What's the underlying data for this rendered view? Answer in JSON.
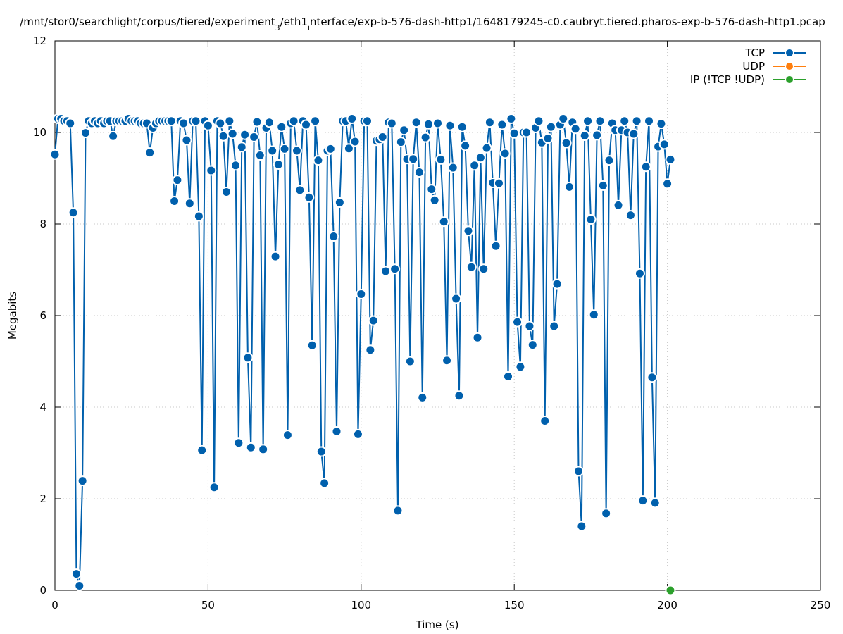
{
  "chart_data": {
    "type": "line",
    "title": "/mnt/stor0/searchlight/corpus/tiered/experiment_3/eth1_interface/exp-b-576-dash-http1/1648179245-c0.caubryt.tiered.pharos-exp-b-576-dash-http1.pcap",
    "title_parts": {
      "pre": "/mnt/stor0/searchlight/corpus/tiered/experiment",
      "sub1": "3",
      "mid": "/eth1",
      "sub2": "i",
      "post": "nterface/exp-b-576-dash-http1/1648179245-c0.caubryt.tiered.pharos-exp-b-576-dash-http1.pcap"
    },
    "xlabel": "Time (s)",
    "ylabel": "Megabits",
    "xlim": [
      0,
      250
    ],
    "ylim": [
      0,
      12
    ],
    "xticks": [
      0,
      50,
      100,
      150,
      200,
      250
    ],
    "yticks": [
      0,
      2,
      4,
      6,
      8,
      10,
      12
    ],
    "grid": true,
    "legend_position": "top-right",
    "series": [
      {
        "name": "TCP",
        "color": "#0060ad",
        "points": [
          [
            0,
            9.52
          ],
          [
            1,
            10.3
          ],
          [
            2,
            10.3
          ],
          [
            3,
            10.25
          ],
          [
            4,
            10.25
          ],
          [
            5,
            10.2
          ],
          [
            6,
            8.25
          ],
          [
            7,
            0.36
          ],
          [
            8,
            0.1
          ],
          [
            9,
            2.39
          ],
          [
            10,
            9.99
          ],
          [
            11,
            10.25
          ],
          [
            12,
            10.2
          ],
          [
            13,
            10.25
          ],
          [
            14,
            10.2
          ],
          [
            15,
            10.25
          ],
          [
            16,
            10.2
          ],
          [
            17,
            10.25
          ],
          [
            18,
            10.25
          ],
          [
            19,
            9.92
          ],
          [
            20,
            10.25
          ],
          [
            21,
            10.25
          ],
          [
            22,
            10.25
          ],
          [
            23,
            10.25
          ],
          [
            24,
            10.3
          ],
          [
            25,
            10.25
          ],
          [
            26,
            10.25
          ],
          [
            27,
            10.25
          ],
          [
            28,
            10.2
          ],
          [
            29,
            10.2
          ],
          [
            30,
            10.2
          ],
          [
            31,
            9.56
          ],
          [
            32,
            10.1
          ],
          [
            33,
            10.2
          ],
          [
            34,
            10.25
          ],
          [
            35,
            10.25
          ],
          [
            36,
            10.25
          ],
          [
            37,
            10.25
          ],
          [
            38,
            10.25
          ],
          [
            39,
            8.5
          ],
          [
            40,
            8.96
          ],
          [
            41,
            10.25
          ],
          [
            42,
            10.2
          ],
          [
            43,
            9.83
          ],
          [
            44,
            8.45
          ],
          [
            45,
            10.25
          ],
          [
            46,
            10.25
          ],
          [
            47,
            8.17
          ],
          [
            48,
            3.06
          ],
          [
            49,
            10.25
          ],
          [
            50,
            10.15
          ],
          [
            51,
            9.17
          ],
          [
            52,
            2.25
          ],
          [
            53,
            10.25
          ],
          [
            54,
            10.2
          ],
          [
            55,
            9.92
          ],
          [
            56,
            8.7
          ],
          [
            57,
            10.25
          ],
          [
            58,
            9.97
          ],
          [
            59,
            9.28
          ],
          [
            60,
            3.22
          ],
          [
            61,
            9.68
          ],
          [
            62,
            9.95
          ],
          [
            63,
            5.08
          ],
          [
            64,
            3.12
          ],
          [
            65,
            9.9
          ],
          [
            66,
            10.23
          ],
          [
            67,
            9.5
          ],
          [
            68,
            3.08
          ],
          [
            69,
            10.1
          ],
          [
            70,
            10.22
          ],
          [
            71,
            9.6
          ],
          [
            72,
            7.29
          ],
          [
            73,
            9.3
          ],
          [
            74,
            10.12
          ],
          [
            75,
            9.64
          ],
          [
            76,
            3.39
          ],
          [
            77,
            10.2
          ],
          [
            78,
            10.25
          ],
          [
            79,
            9.6
          ],
          [
            80,
            8.74
          ],
          [
            81,
            10.25
          ],
          [
            82,
            10.17
          ],
          [
            83,
            8.58
          ],
          [
            84,
            5.35
          ],
          [
            85,
            10.25
          ],
          [
            86,
            9.39
          ],
          [
            87,
            3.03
          ],
          [
            88,
            2.34
          ],
          [
            89,
            9.6
          ],
          [
            90,
            9.64
          ],
          [
            91,
            7.73
          ],
          [
            92,
            3.47
          ],
          [
            93,
            8.47
          ],
          [
            94,
            10.25
          ],
          [
            95,
            10.25
          ],
          [
            96,
            9.65
          ],
          [
            97,
            10.3
          ],
          [
            98,
            9.8
          ],
          [
            99,
            3.41
          ],
          [
            100,
            6.47
          ],
          [
            101,
            10.25
          ],
          [
            102,
            10.25
          ],
          [
            103,
            5.25
          ],
          [
            104,
            5.89
          ],
          [
            105,
            9.82
          ],
          [
            106,
            9.85
          ],
          [
            107,
            9.9
          ],
          [
            108,
            6.97
          ],
          [
            109,
            10.22
          ],
          [
            110,
            10.2
          ],
          [
            111,
            7.02
          ],
          [
            112,
            1.74
          ],
          [
            113,
            9.79
          ],
          [
            114,
            10.05
          ],
          [
            115,
            9.42
          ],
          [
            116,
            5.0
          ],
          [
            117,
            9.42
          ],
          [
            118,
            10.22
          ],
          [
            119,
            9.13
          ],
          [
            120,
            4.21
          ],
          [
            121,
            9.89
          ],
          [
            122,
            10.18
          ],
          [
            123,
            8.76
          ],
          [
            124,
            8.52
          ],
          [
            125,
            10.2
          ],
          [
            126,
            9.41
          ],
          [
            127,
            8.05
          ],
          [
            128,
            5.02
          ],
          [
            129,
            10.15
          ],
          [
            130,
            9.23
          ],
          [
            131,
            6.37
          ],
          [
            132,
            4.25
          ],
          [
            133,
            10.12
          ],
          [
            134,
            9.71
          ],
          [
            135,
            7.85
          ],
          [
            136,
            7.06
          ],
          [
            137,
            9.28
          ],
          [
            138,
            5.52
          ],
          [
            139,
            9.45
          ],
          [
            140,
            7.02
          ],
          [
            141,
            9.66
          ],
          [
            142,
            10.22
          ],
          [
            143,
            8.9
          ],
          [
            144,
            7.52
          ],
          [
            145,
            8.89
          ],
          [
            146,
            10.17
          ],
          [
            147,
            9.54
          ],
          [
            148,
            4.67
          ],
          [
            149,
            10.3
          ],
          [
            150,
            9.98
          ],
          [
            151,
            5.86
          ],
          [
            152,
            4.88
          ],
          [
            153,
            10.0
          ],
          [
            154,
            10.0
          ],
          [
            155,
            5.77
          ],
          [
            156,
            5.36
          ],
          [
            157,
            10.1
          ],
          [
            158,
            10.25
          ],
          [
            159,
            9.78
          ],
          [
            160,
            3.7
          ],
          [
            161,
            9.87
          ],
          [
            162,
            10.12
          ],
          [
            163,
            5.77
          ],
          [
            164,
            6.69
          ],
          [
            165,
            10.17
          ],
          [
            166,
            10.3
          ],
          [
            167,
            9.77
          ],
          [
            168,
            8.81
          ],
          [
            169,
            10.22
          ],
          [
            170,
            10.08
          ],
          [
            171,
            2.6
          ],
          [
            172,
            1.4
          ],
          [
            173,
            9.93
          ],
          [
            174,
            10.25
          ],
          [
            175,
            8.1
          ],
          [
            176,
            6.02
          ],
          [
            177,
            9.94
          ],
          [
            178,
            10.25
          ],
          [
            179,
            8.84
          ],
          [
            180,
            1.68
          ],
          [
            181,
            9.39
          ],
          [
            182,
            10.2
          ],
          [
            183,
            10.05
          ],
          [
            184,
            8.41
          ],
          [
            185,
            10.05
          ],
          [
            186,
            10.25
          ],
          [
            187,
            10.0
          ],
          [
            188,
            8.19
          ],
          [
            189,
            9.97
          ],
          [
            190,
            10.25
          ],
          [
            191,
            6.92
          ],
          [
            192,
            1.96
          ],
          [
            193,
            9.25
          ],
          [
            194,
            10.25
          ],
          [
            195,
            4.65
          ],
          [
            196,
            1.91
          ],
          [
            197,
            9.69
          ],
          [
            198,
            10.19
          ],
          [
            199,
            9.74
          ],
          [
            200,
            8.88
          ],
          [
            201,
            9.41
          ]
        ]
      },
      {
        "name": "UDP",
        "color": "#ff7f0e",
        "points": []
      },
      {
        "name": "IP (!TCP  !UDP)",
        "color": "#2ca02c",
        "points": [
          [
            201,
            0
          ]
        ]
      }
    ]
  }
}
